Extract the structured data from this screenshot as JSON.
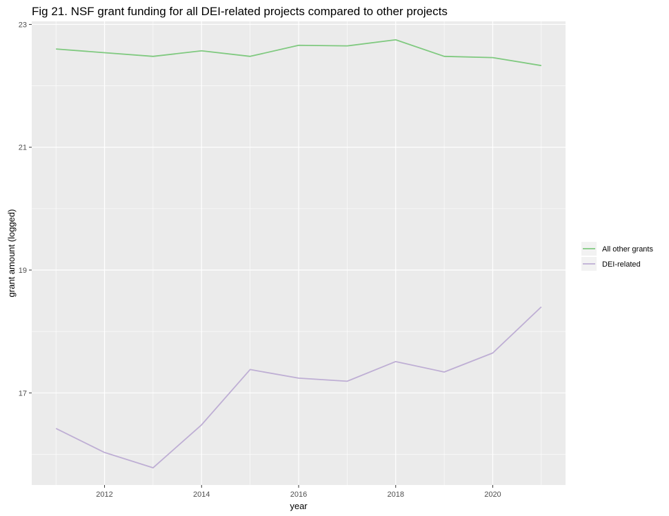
{
  "chart_data": {
    "type": "line",
    "title": "Fig 21. NSF grant funding for all DEI-related projects compared to other projects",
    "xlabel": "year",
    "ylabel": "grant amount (logged)",
    "x": [
      2011,
      2012,
      2013,
      2014,
      2015,
      2016,
      2017,
      2018,
      2019,
      2020,
      2021
    ],
    "x_ticks": [
      2012,
      2014,
      2016,
      2018,
      2020
    ],
    "y_ticks": [
      17,
      19,
      21,
      23
    ],
    "xlim": [
      2010.5,
      2021.5
    ],
    "ylim": [
      15.5,
      23.05
    ],
    "grid": true,
    "legend_position": "right",
    "series": [
      {
        "name": "All other grants",
        "color": "#7fc97f",
        "values": [
          22.6,
          22.54,
          22.48,
          22.57,
          22.48,
          22.66,
          22.65,
          22.75,
          22.48,
          22.46,
          22.33
        ]
      },
      {
        "name": "DEI-related",
        "color": "#beaed4",
        "values": [
          16.42,
          16.03,
          15.78,
          16.48,
          17.38,
          17.24,
          17.19,
          17.51,
          17.34,
          17.65,
          18.4
        ]
      }
    ]
  }
}
